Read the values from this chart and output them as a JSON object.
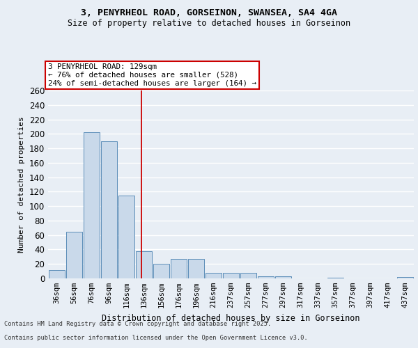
{
  "title_line1": "3, PENYRHEOL ROAD, GORSEINON, SWANSEA, SA4 4GA",
  "title_line2": "Size of property relative to detached houses in Gorseinon",
  "xlabel": "Distribution of detached houses by size in Gorseinon",
  "ylabel": "Number of detached properties",
  "bar_color": "#c9d9ea",
  "bar_edge_color": "#5b8db8",
  "background_color": "#e8eef5",
  "grid_color": "#ffffff",
  "categories": [
    "36sqm",
    "56sqm",
    "76sqm",
    "96sqm",
    "116sqm",
    "136sqm",
    "156sqm",
    "176sqm",
    "196sqm",
    "216sqm",
    "237sqm",
    "257sqm",
    "277sqm",
    "297sqm",
    "317sqm",
    "337sqm",
    "357sqm",
    "377sqm",
    "397sqm",
    "417sqm",
    "437sqm"
  ],
  "values": [
    12,
    65,
    202,
    190,
    115,
    38,
    20,
    27,
    27,
    8,
    8,
    8,
    3,
    3,
    0,
    0,
    1,
    0,
    0,
    0,
    2
  ],
  "property_line_x": 4.87,
  "annotation_text": "3 PENYRHEOL ROAD: 129sqm\n← 76% of detached houses are smaller (528)\n24% of semi-detached houses are larger (164) →",
  "annotation_box_color": "#ffffff",
  "annotation_box_edge": "#cc0000",
  "vline_color": "#cc0000",
  "ylim": [
    0,
    260
  ],
  "yticks": [
    0,
    20,
    40,
    60,
    80,
    100,
    120,
    140,
    160,
    180,
    200,
    220,
    240,
    260
  ],
  "footer_line1": "Contains HM Land Registry data © Crown copyright and database right 2025.",
  "footer_line2": "Contains public sector information licensed under the Open Government Licence v3.0."
}
